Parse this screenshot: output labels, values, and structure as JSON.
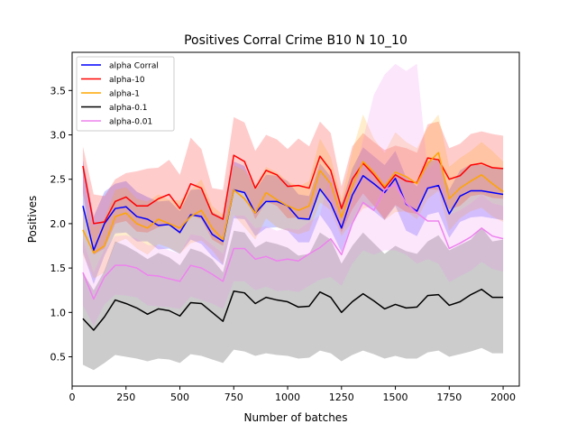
{
  "chart_data": {
    "type": "line",
    "title": "Positives Corral Crime B10 N 10_10",
    "xlabel": "Number of batches",
    "ylabel": "Positives",
    "xlim": [
      0,
      2075
    ],
    "ylim": [
      0.17,
      3.93
    ],
    "xticks": [
      0,
      250,
      500,
      750,
      1000,
      1250,
      1500,
      1750,
      2000
    ],
    "yticks": [
      0.5,
      1.0,
      1.5,
      2.0,
      2.5,
      3.0,
      3.5
    ],
    "legend_position": "top-left",
    "grid": false,
    "x": [
      50,
      100,
      150,
      200,
      250,
      300,
      350,
      400,
      450,
      500,
      550,
      600,
      650,
      700,
      750,
      800,
      850,
      900,
      950,
      1000,
      1050,
      1100,
      1150,
      1200,
      1250,
      1300,
      1350,
      1400,
      1450,
      1500,
      1550,
      1600,
      1650,
      1700,
      1750,
      1800,
      1850,
      1900,
      1950,
      2000
    ],
    "series": [
      {
        "name": "alpha Corral",
        "color": "#0000ff",
        "values": [
          2.2,
          1.7,
          2.0,
          2.17,
          2.19,
          2.08,
          2.05,
          1.98,
          1.99,
          1.9,
          2.1,
          2.08,
          1.88,
          1.8,
          2.38,
          2.35,
          2.12,
          2.25,
          2.25,
          2.2,
          2.06,
          2.05,
          2.39,
          2.23,
          1.95,
          2.32,
          2.54,
          2.45,
          2.35,
          2.51,
          2.22,
          2.14,
          2.4,
          2.43,
          2.11,
          2.31,
          2.37,
          2.37,
          2.35,
          2.33
        ],
        "upper": [
          2.72,
          2.08,
          2.36,
          2.45,
          2.48,
          2.36,
          2.3,
          2.25,
          2.26,
          2.14,
          2.38,
          2.39,
          2.13,
          2.07,
          2.7,
          2.65,
          2.38,
          2.55,
          2.54,
          2.48,
          2.33,
          2.31,
          2.68,
          2.53,
          2.22,
          2.62,
          2.86,
          2.76,
          2.66,
          2.82,
          2.52,
          2.42,
          2.7,
          2.73,
          2.38,
          2.6,
          2.67,
          2.66,
          2.64,
          2.62
        ],
        "lower": [
          1.68,
          1.32,
          1.64,
          1.89,
          1.9,
          1.8,
          1.8,
          1.71,
          1.72,
          1.66,
          1.82,
          1.77,
          1.63,
          1.53,
          2.06,
          2.05,
          1.86,
          1.95,
          1.96,
          1.92,
          1.79,
          1.79,
          2.1,
          1.93,
          1.68,
          2.02,
          2.22,
          2.14,
          2.04,
          2.2,
          1.92,
          1.86,
          2.1,
          2.13,
          1.84,
          2.02,
          2.07,
          2.08,
          2.06,
          2.04
        ]
      },
      {
        "name": "alpha-10",
        "color": "#ff0000",
        "values": [
          2.65,
          2.0,
          2.02,
          2.25,
          2.3,
          2.2,
          2.2,
          2.28,
          2.33,
          2.17,
          2.45,
          2.4,
          2.11,
          2.05,
          2.77,
          2.7,
          2.4,
          2.6,
          2.55,
          2.42,
          2.43,
          2.4,
          2.76,
          2.6,
          2.17,
          2.5,
          2.68,
          2.55,
          2.4,
          2.55,
          2.48,
          2.46,
          2.74,
          2.72,
          2.5,
          2.54,
          2.66,
          2.68,
          2.63,
          2.62
        ],
        "upper": [
          2.87,
          2.33,
          2.31,
          2.5,
          2.57,
          2.59,
          2.62,
          2.63,
          2.72,
          2.55,
          2.97,
          2.84,
          2.4,
          2.38,
          3.2,
          3.14,
          2.82,
          3.0,
          2.95,
          2.84,
          2.96,
          2.87,
          3.15,
          3.02,
          2.42,
          2.87,
          3.02,
          2.92,
          2.83,
          2.88,
          2.85,
          2.8,
          3.12,
          3.15,
          2.85,
          2.9,
          3.01,
          3.04,
          3.01,
          2.99
        ],
        "lower": [
          2.35,
          1.65,
          1.72,
          2.0,
          2.03,
          1.91,
          1.9,
          1.96,
          1.99,
          1.88,
          2.1,
          2.05,
          1.82,
          1.75,
          2.37,
          2.35,
          2.05,
          2.25,
          2.2,
          2.06,
          2.07,
          2.05,
          2.4,
          2.24,
          1.9,
          2.16,
          2.34,
          2.2,
          2.05,
          2.21,
          2.13,
          2.11,
          2.39,
          2.38,
          2.16,
          2.2,
          2.31,
          2.33,
          2.29,
          2.28
        ]
      },
      {
        "name": "alpha-1",
        "color": "#ffa500",
        "values": [
          1.93,
          1.67,
          1.75,
          2.08,
          2.12,
          2.0,
          1.95,
          2.05,
          2.0,
          1.95,
          2.08,
          2.15,
          1.95,
          1.82,
          2.38,
          2.28,
          2.12,
          2.35,
          2.27,
          2.2,
          2.15,
          2.2,
          2.6,
          2.45,
          2.07,
          2.42,
          2.7,
          2.58,
          2.42,
          2.58,
          2.53,
          2.45,
          2.68,
          2.8,
          2.28,
          2.4,
          2.48,
          2.55,
          2.45,
          2.36
        ],
        "upper": [
          2.2,
          1.96,
          2.05,
          2.38,
          2.41,
          2.28,
          2.25,
          2.33,
          2.27,
          2.26,
          2.38,
          2.5,
          2.2,
          2.1,
          2.66,
          2.6,
          2.42,
          2.64,
          2.58,
          2.48,
          2.42,
          2.48,
          2.96,
          2.75,
          2.28,
          2.82,
          3.23,
          2.96,
          2.8,
          3.03,
          2.92,
          2.85,
          3.08,
          3.23,
          2.64,
          2.74,
          2.82,
          2.92,
          2.82,
          2.7
        ],
        "lower": [
          1.65,
          1.38,
          1.45,
          1.78,
          1.83,
          1.72,
          1.65,
          1.77,
          1.73,
          1.66,
          1.78,
          1.81,
          1.7,
          1.54,
          2.1,
          1.96,
          1.82,
          2.06,
          1.96,
          1.92,
          1.88,
          1.92,
          2.24,
          2.15,
          1.86,
          2.02,
          2.17,
          2.2,
          2.04,
          2.13,
          2.14,
          2.05,
          2.28,
          2.37,
          1.92,
          2.06,
          2.14,
          2.18,
          2.08,
          2.02
        ]
      },
      {
        "name": "alpha-0.1",
        "color": "#000000",
        "values": [
          0.93,
          0.8,
          0.95,
          1.14,
          1.1,
          1.05,
          0.98,
          1.04,
          1.02,
          0.96,
          1.11,
          1.1,
          1.0,
          0.9,
          1.24,
          1.22,
          1.1,
          1.17,
          1.14,
          1.12,
          1.06,
          1.07,
          1.23,
          1.17,
          1.0,
          1.12,
          1.21,
          1.13,
          1.04,
          1.09,
          1.05,
          1.06,
          1.19,
          1.2,
          1.08,
          1.12,
          1.2,
          1.26,
          1.17,
          1.17
        ],
        "upper": [
          1.45,
          1.25,
          1.47,
          1.8,
          1.75,
          1.68,
          1.6,
          1.67,
          1.62,
          1.53,
          1.72,
          1.68,
          1.6,
          1.45,
          1.92,
          1.9,
          1.73,
          1.8,
          1.77,
          1.73,
          1.64,
          1.66,
          1.9,
          1.82,
          1.55,
          1.75,
          1.9,
          1.78,
          1.66,
          1.75,
          1.69,
          1.66,
          1.8,
          1.87,
          1.7,
          1.76,
          1.82,
          1.96,
          1.8,
          1.82
        ],
        "lower": [
          0.41,
          0.35,
          0.43,
          0.52,
          0.5,
          0.48,
          0.45,
          0.48,
          0.47,
          0.43,
          0.53,
          0.51,
          0.47,
          0.43,
          0.58,
          0.56,
          0.51,
          0.54,
          0.52,
          0.51,
          0.48,
          0.49,
          0.57,
          0.54,
          0.45,
          0.52,
          0.57,
          0.53,
          0.48,
          0.51,
          0.48,
          0.48,
          0.55,
          0.57,
          0.5,
          0.53,
          0.56,
          0.6,
          0.54,
          0.54
        ]
      },
      {
        "name": "alpha-0.01",
        "color": "#ee82ee",
        "values": [
          1.45,
          1.15,
          1.4,
          1.53,
          1.53,
          1.5,
          1.42,
          1.41,
          1.38,
          1.35,
          1.53,
          1.5,
          1.43,
          1.35,
          1.72,
          1.72,
          1.6,
          1.63,
          1.58,
          1.6,
          1.58,
          1.66,
          1.73,
          1.83,
          1.65,
          2.0,
          2.24,
          2.15,
          2.38,
          2.44,
          2.23,
          2.12,
          2.03,
          2.03,
          1.72,
          1.78,
          1.85,
          1.95,
          1.86,
          1.83
        ],
        "upper": [
          1.82,
          1.45,
          1.71,
          1.86,
          1.87,
          1.83,
          1.76,
          1.75,
          1.7,
          1.66,
          1.88,
          1.86,
          1.76,
          1.66,
          2.09,
          2.09,
          1.95,
          1.97,
          1.92,
          1.95,
          1.93,
          2.02,
          2.09,
          2.6,
          2.0,
          2.45,
          2.95,
          3.45,
          3.68,
          3.8,
          3.72,
          3.8,
          2.6,
          2.72,
          2.1,
          2.15,
          2.23,
          2.33,
          2.23,
          2.2
        ],
        "lower": [
          1.08,
          0.85,
          1.09,
          1.2,
          1.19,
          1.17,
          1.08,
          1.07,
          1.06,
          1.04,
          1.18,
          1.14,
          1.1,
          1.04,
          1.35,
          1.35,
          1.25,
          1.29,
          1.24,
          1.25,
          1.23,
          1.3,
          1.37,
          1.4,
          1.3,
          1.55,
          1.7,
          1.65,
          1.7,
          1.7,
          1.65,
          1.55,
          1.6,
          1.55,
          1.34,
          1.41,
          1.47,
          1.57,
          1.49,
          1.46
        ]
      }
    ]
  }
}
